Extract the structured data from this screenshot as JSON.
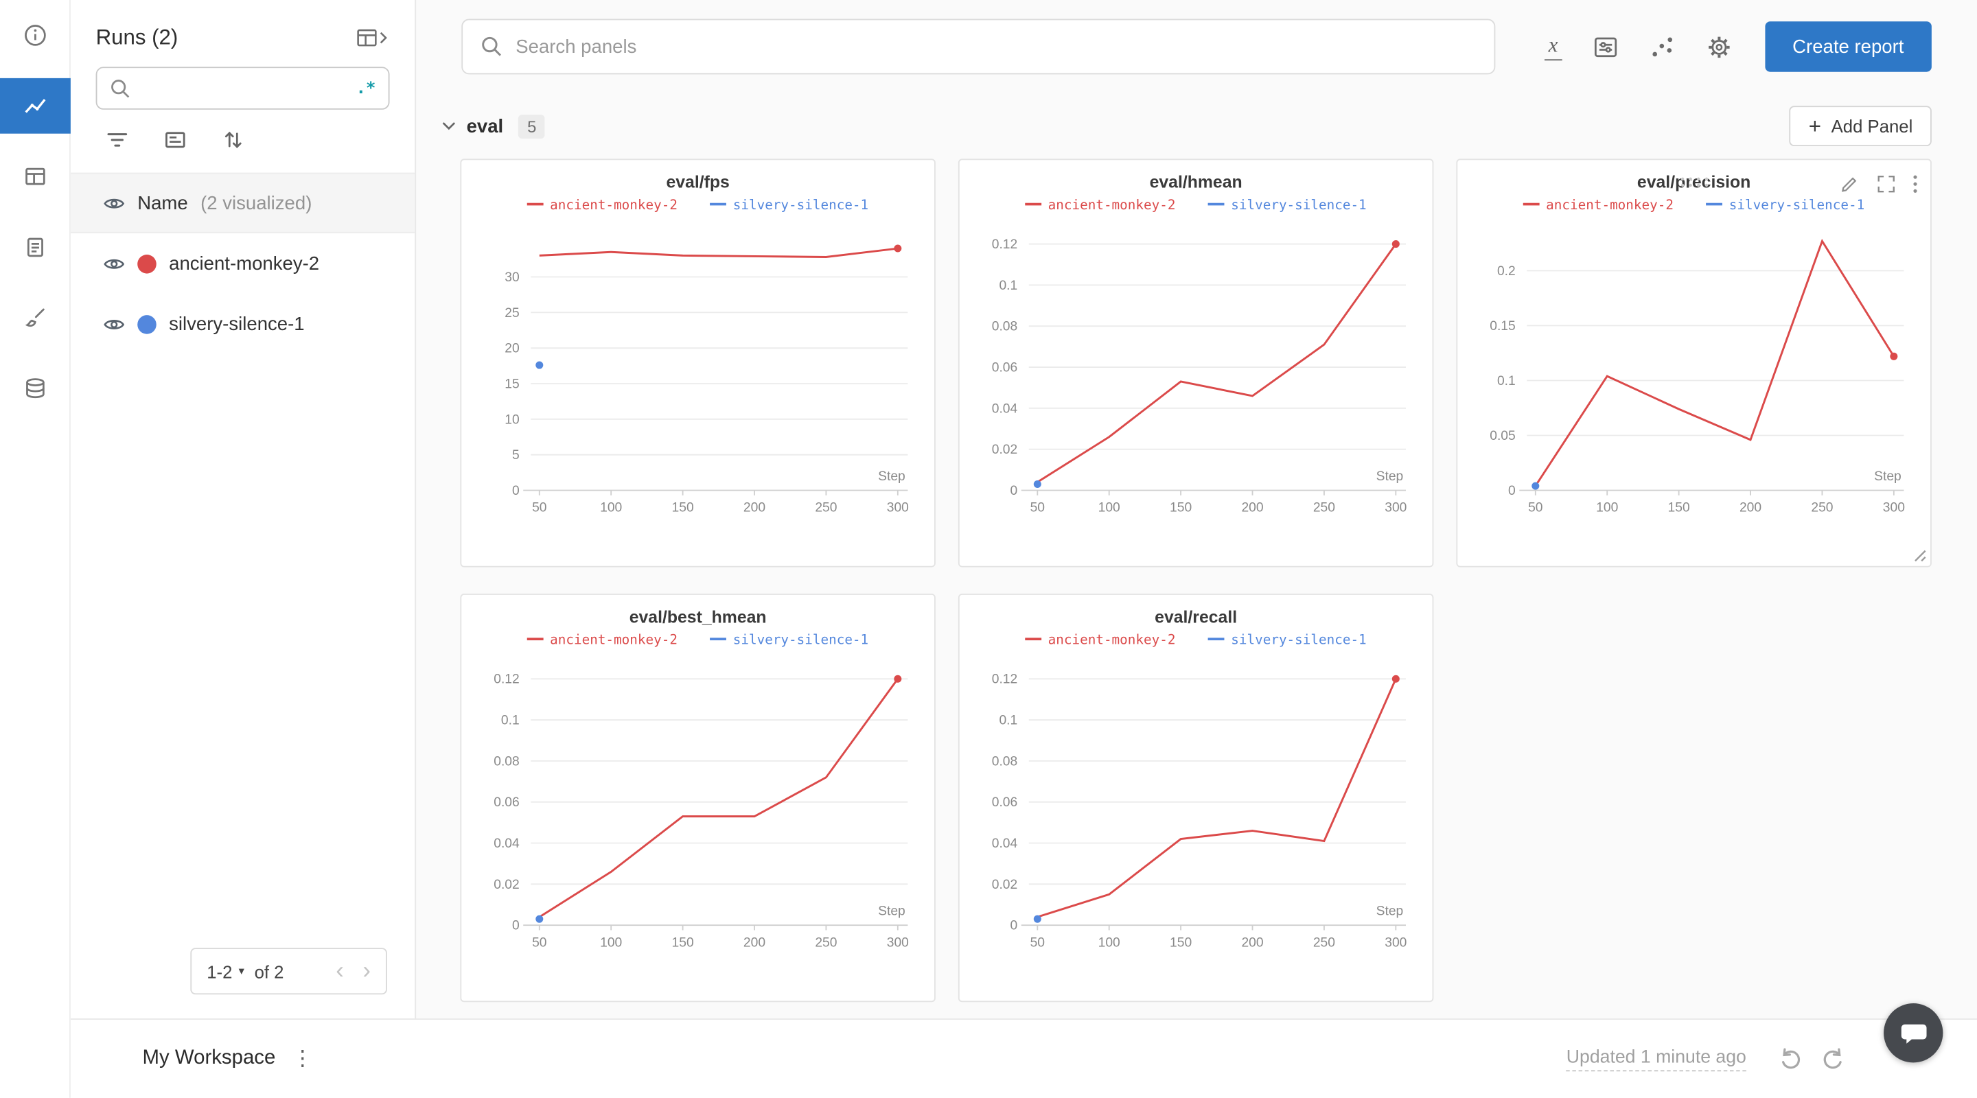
{
  "colors": {
    "accent_blue": "#2e78c7",
    "run_red": "#DB4A4A",
    "run_blue": "#5387DD",
    "grid": "#ebebeb",
    "axis": "#cfcfcf"
  },
  "icons": {
    "plus": "+",
    "caret_down": "▾",
    "chevron_left": "‹",
    "chevron_right": "›",
    "kebab_vertical": "⋮",
    "regex": ".*",
    "xaxis": "x"
  },
  "rail": {
    "items": [
      "info-icon",
      "line-chart-icon",
      "table-icon",
      "clipboard-icon",
      "brush-icon",
      "database-icon"
    ],
    "active": "line-chart-icon"
  },
  "sidebar": {
    "title": "Runs (2)",
    "search": {
      "placeholder": "",
      "regex_label": ".*"
    },
    "toolbar_icons": [
      "filter-icon",
      "card-list-icon",
      "sort-icon"
    ],
    "visualized_row": {
      "name": "Name",
      "note": "(2 visualized)"
    },
    "runs": [
      {
        "label": "ancient-monkey-2",
        "color": "#DB4A4A",
        "visible": true
      },
      {
        "label": "silvery-silence-1",
        "color": "#5387DD",
        "visible": true
      }
    ],
    "pagination": {
      "range": "1-2",
      "of_label": "of 2"
    }
  },
  "topbar": {
    "search_placeholder": "Search panels",
    "icons": [
      "x-axis-icon",
      "panel-settings-icon",
      "scatter-plot-icon",
      "gear-icon"
    ],
    "create_report_label": "Create report"
  },
  "section": {
    "label": "eval",
    "count": "5",
    "add_panel_label": "Add Panel"
  },
  "footer": {
    "workspace_label": "My Workspace",
    "updated_label": "Updated 1 minute ago"
  },
  "chart_data": [
    {
      "type": "line",
      "title": "eval/fps",
      "xlabel": "Step",
      "x": [
        50,
        100,
        150,
        200,
        250,
        300
      ],
      "xlim": [
        44,
        307
      ],
      "yticks": [
        0,
        5,
        10,
        15,
        20,
        25,
        30
      ],
      "ylim": [
        0,
        36.5
      ],
      "legend_position": "top",
      "grid": "horizontal",
      "series": [
        {
          "name": "ancient-monkey-2",
          "color": "#DB4A4A",
          "end_dot": true,
          "values": [
            33.0,
            33.5,
            33.0,
            32.9,
            32.8,
            34.0
          ]
        },
        {
          "name": "silvery-silence-1",
          "color": "#5387DD",
          "end_dot": false,
          "values": [
            17.6,
            null,
            null,
            null,
            null,
            null
          ]
        }
      ]
    },
    {
      "type": "line",
      "title": "eval/hmean",
      "xlabel": "Step",
      "x": [
        50,
        100,
        150,
        200,
        250,
        300
      ],
      "xlim": [
        44,
        307
      ],
      "yticks": [
        0,
        0.02,
        0.04,
        0.06,
        0.08,
        0.1,
        0.12
      ],
      "ylim": [
        0,
        0.1265
      ],
      "legend_position": "top",
      "grid": "horizontal",
      "series": [
        {
          "name": "ancient-monkey-2",
          "color": "#DB4A4A",
          "end_dot": true,
          "values": [
            0.004,
            0.026,
            0.053,
            0.046,
            0.071,
            0.12
          ]
        },
        {
          "name": "silvery-silence-1",
          "color": "#5387DD",
          "end_dot": false,
          "values": [
            0.003,
            null,
            null,
            null,
            null,
            null
          ]
        }
      ]
    },
    {
      "type": "line",
      "title": "eval/precision",
      "xlabel": "Step",
      "x": [
        50,
        100,
        150,
        200,
        250,
        300
      ],
      "xlim": [
        44,
        307
      ],
      "yticks": [
        0,
        0.05,
        0.1,
        0.15,
        0.2
      ],
      "ylim": [
        0,
        0.2365
      ],
      "legend_position": "top",
      "grid": "horizontal",
      "series": [
        {
          "name": "ancient-monkey-2",
          "color": "#DB4A4A",
          "end_dot": true,
          "values": [
            0.004,
            0.104,
            0.074,
            0.046,
            0.227,
            0.122
          ]
        },
        {
          "name": "silvery-silence-1",
          "color": "#5387DD",
          "end_dot": false,
          "values": [
            0.004,
            null,
            null,
            null,
            null,
            null
          ]
        }
      ]
    },
    {
      "type": "line",
      "title": "eval/best_hmean",
      "xlabel": "Step",
      "x": [
        50,
        100,
        150,
        200,
        250,
        300
      ],
      "xlim": [
        44,
        307
      ],
      "yticks": [
        0,
        0.02,
        0.04,
        0.06,
        0.08,
        0.1,
        0.12
      ],
      "ylim": [
        0,
        0.1265
      ],
      "legend_position": "top",
      "grid": "horizontal",
      "series": [
        {
          "name": "ancient-monkey-2",
          "color": "#DB4A4A",
          "end_dot": true,
          "values": [
            0.004,
            0.026,
            0.053,
            0.053,
            0.072,
            0.12
          ]
        },
        {
          "name": "silvery-silence-1",
          "color": "#5387DD",
          "end_dot": false,
          "values": [
            0.003,
            null,
            null,
            null,
            null,
            null
          ]
        }
      ]
    },
    {
      "type": "line",
      "title": "eval/recall",
      "xlabel": "Step",
      "x": [
        50,
        100,
        150,
        200,
        250,
        300
      ],
      "xlim": [
        44,
        307
      ],
      "yticks": [
        0,
        0.02,
        0.04,
        0.06,
        0.08,
        0.1,
        0.12
      ],
      "ylim": [
        0,
        0.1265
      ],
      "legend_position": "top",
      "grid": "horizontal",
      "series": [
        {
          "name": "ancient-monkey-2",
          "color": "#DB4A4A",
          "end_dot": true,
          "values": [
            0.004,
            0.015,
            0.042,
            0.046,
            0.041,
            0.12
          ]
        },
        {
          "name": "silvery-silence-1",
          "color": "#5387DD",
          "end_dot": false,
          "values": [
            0.003,
            null,
            null,
            null,
            null,
            null
          ]
        }
      ]
    }
  ]
}
